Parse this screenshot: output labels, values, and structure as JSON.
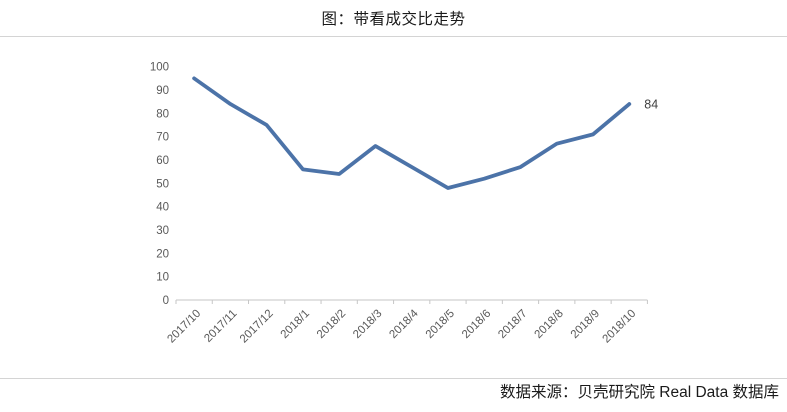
{
  "header": {
    "title": "图：带看成交比走势"
  },
  "chart_data": {
    "type": "line",
    "title": "图：带看成交比走势",
    "categories": [
      "2017/10",
      "2017/11",
      "2017/12",
      "2018/1",
      "2018/2",
      "2018/3",
      "2018/4",
      "2018/5",
      "2018/6",
      "2018/7",
      "2018/8",
      "2018/9",
      "2018/10"
    ],
    "values": [
      95,
      84,
      75,
      56,
      54,
      66,
      57,
      48,
      52,
      57,
      67,
      71,
      84
    ],
    "xlabel": "",
    "ylabel": "",
    "ylim": [
      0,
      100
    ],
    "ytick_step": 10,
    "yticks": [
      0,
      10,
      20,
      30,
      40,
      50,
      60,
      70,
      80,
      90,
      100
    ],
    "grid": false,
    "legend": false,
    "last_point_label": "84",
    "colors": {
      "line": "#4c73a8",
      "axis": "#c6c6c6",
      "tick_label": "#595959",
      "data_label": "#404040"
    }
  },
  "footer": {
    "source": "数据来源：贝壳研究院 Real Data 数据库"
  }
}
